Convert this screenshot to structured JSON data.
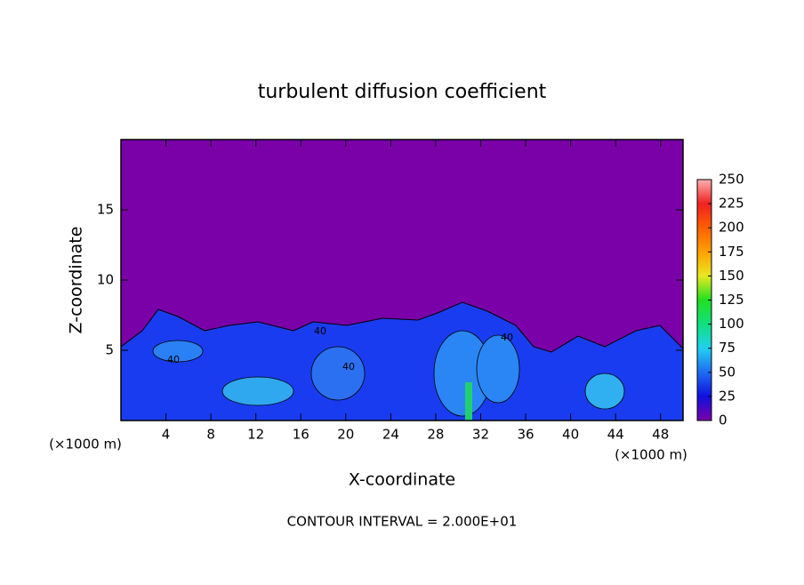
{
  "chart_data": {
    "type": "heatmap",
    "title": "turbulent diffusion coefficient",
    "x_label": "X-coordinate",
    "y_label": "Z-coordinate",
    "x_unit_label": "(×1000 m)",
    "note": "CONTOUR INTERVAL = 2.000E+01",
    "xlim": [
      0,
      50
    ],
    "xticks": [
      4,
      8,
      12,
      16,
      20,
      24,
      28,
      32,
      36,
      40,
      44,
      48
    ],
    "ylim": [
      0,
      20
    ],
    "yticks": [
      5,
      10,
      15
    ],
    "colorbar_lim": [
      0,
      250
    ],
    "colorbar_ticks": [
      0,
      25,
      50,
      75,
      100,
      125,
      150,
      175,
      200,
      225,
      250
    ],
    "colorscale": [
      "#7a00a8",
      "#1010e0",
      "#1e6cf5",
      "#20d0f0",
      "#10e080",
      "#20e020",
      "#e8e820",
      "#ffa000",
      "#ff6000",
      "#f02020",
      "#ffb0b0"
    ],
    "contour_labels": [
      "40",
      "40",
      "40",
      "40"
    ]
  }
}
